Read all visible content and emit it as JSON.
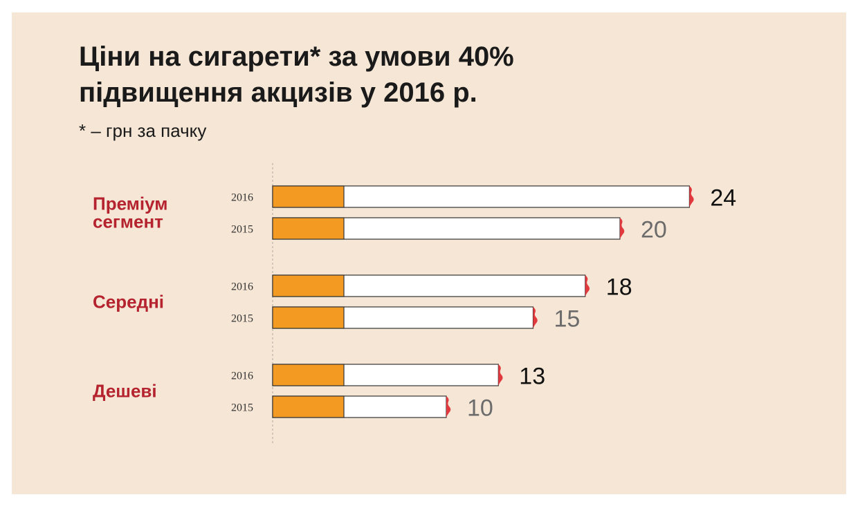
{
  "title_line1": "Ціни на сигарети* за умови 40%",
  "title_line2": "підвищення акцизів у 2016 р.",
  "subtitle": "* – грн за пачку",
  "colors": {
    "filter": "#f29a22",
    "tip": "#e2393f",
    "category_label": "#b5232f",
    "value_2016": "#111111",
    "value_2015": "#6b6b6b",
    "background": "#f5e6d5"
  },
  "chart_data": {
    "type": "bar",
    "orientation": "horizontal",
    "categories": [
      "Преміум сегмент",
      "Середні",
      "Дешеві"
    ],
    "category_lines": [
      [
        "Преміум",
        "сегмент"
      ],
      [
        "Середні"
      ],
      [
        "Дешеві"
      ]
    ],
    "series": [
      {
        "name": "2016",
        "values": [
          24,
          18,
          13
        ]
      },
      {
        "name": "2015",
        "values": [
          20,
          15,
          10
        ]
      }
    ],
    "xlim": [
      0,
      24
    ],
    "grid": false,
    "legend": "none"
  }
}
